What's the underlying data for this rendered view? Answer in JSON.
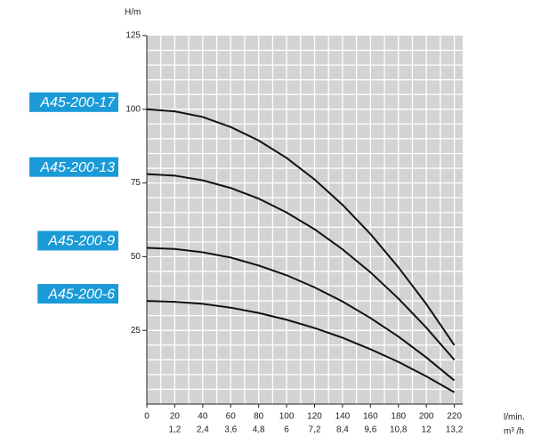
{
  "chart_data": {
    "type": "line",
    "y_label": "H/m",
    "x_label": "l/min.",
    "x2_label": "m³ /h",
    "x": [
      0,
      20,
      40,
      60,
      80,
      100,
      120,
      140,
      160,
      180,
      200,
      220
    ],
    "series": [
      {
        "name": "A45-200-17",
        "color": "#111111",
        "values": [
          100,
          99.3,
          97.4,
          94.0,
          89.4,
          83.5,
          76.2,
          67.6,
          57.7,
          46.4,
          33.9,
          20
        ]
      },
      {
        "name": "A45-200-13",
        "color": "#111111",
        "values": [
          78,
          77.5,
          75.9,
          73.3,
          69.7,
          65.0,
          59.3,
          52.5,
          44.7,
          35.8,
          25.9,
          15
        ]
      },
      {
        "name": "A45-200-9",
        "color": "#111111",
        "values": [
          53,
          52.6,
          51.5,
          49.7,
          47.0,
          43.7,
          39.6,
          34.8,
          29.2,
          22.9,
          15.8,
          8
        ]
      },
      {
        "name": "A45-200-6",
        "color": "#111111",
        "values": [
          35,
          34.7,
          34.0,
          32.7,
          30.9,
          28.6,
          25.8,
          22.5,
          18.6,
          14.3,
          9.4,
          4
        ]
      }
    ],
    "xlim": [
      0,
      226
    ],
    "ylim": [
      0,
      125
    ],
    "xticks": [
      0,
      20,
      40,
      60,
      80,
      100,
      120,
      140,
      160,
      180,
      200,
      220
    ],
    "yticks": [
      25,
      50,
      75,
      100,
      125
    ],
    "x2lim": [
      0,
      13.56
    ],
    "x2ticks": [
      {
        "value": 1.2,
        "label": "1,2"
      },
      {
        "value": 2.4,
        "label": "2,4"
      },
      {
        "value": 3.6,
        "label": "3,6"
      },
      {
        "value": 4.8,
        "label": "4,8"
      },
      6,
      {
        "value": 7.2,
        "label": "7,2"
      },
      {
        "value": 8.4,
        "label": "8,4"
      },
      {
        "value": 9.6,
        "label": "9,6"
      },
      {
        "value": 10.8,
        "label": "10,8"
      },
      12,
      {
        "value": 13.2,
        "label": "13,2"
      }
    ],
    "grid": true,
    "legend_color": "#1a9bd7"
  }
}
